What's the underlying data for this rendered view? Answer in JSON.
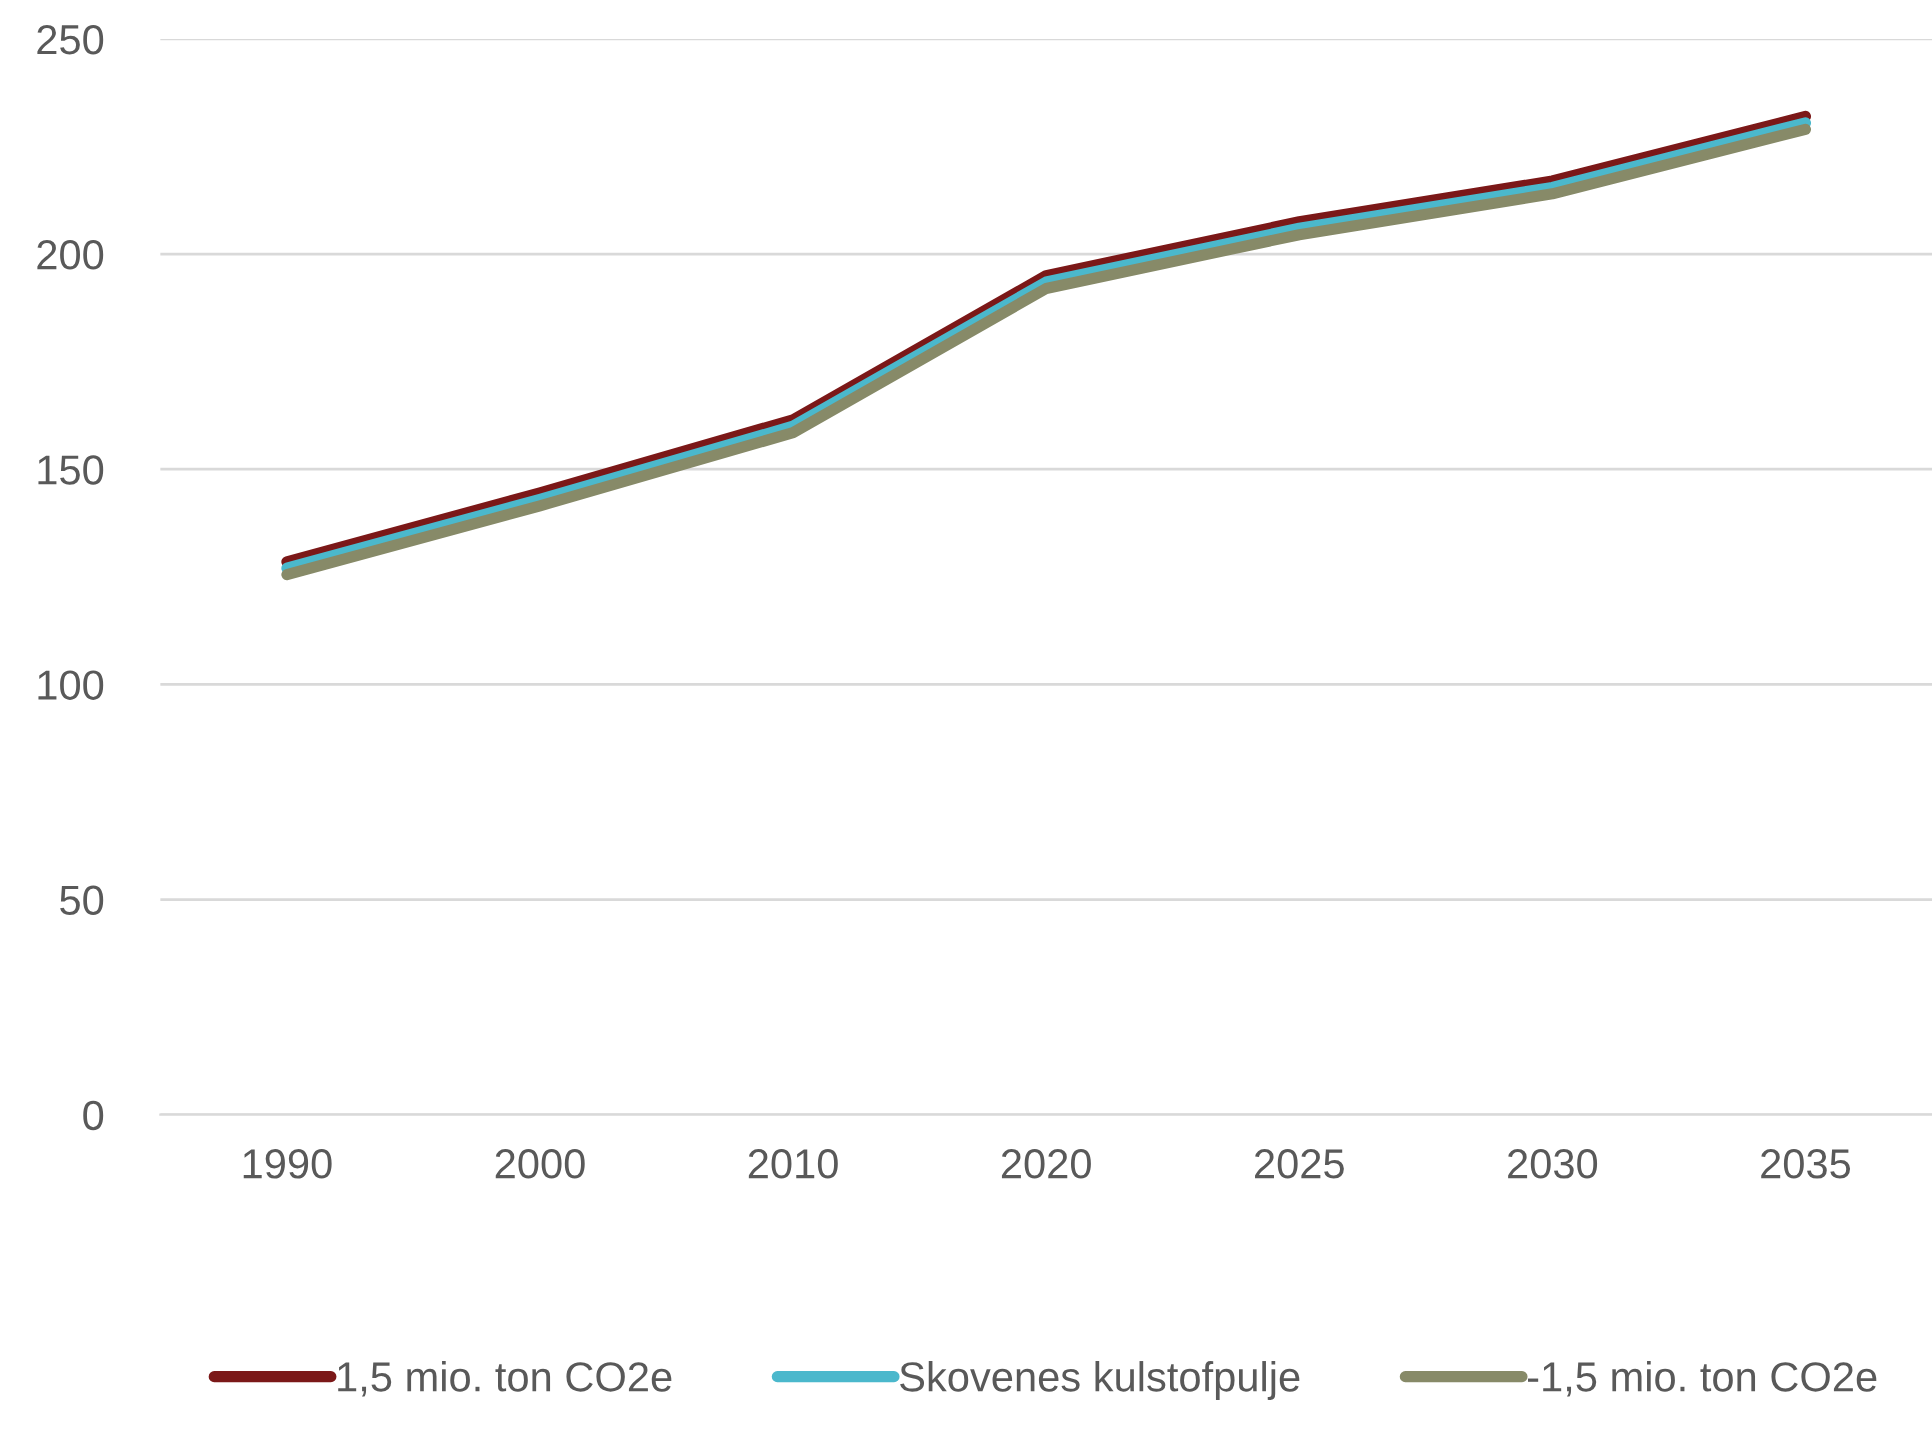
{
  "chart_data": {
    "type": "line",
    "categories": [
      "1990",
      "2000",
      "2010",
      "2020",
      "2025",
      "2030",
      "2035"
    ],
    "series": [
      {
        "name": "1,5 mio. ton CO2e",
        "color": "#7b1818",
        "values": [
          128.5,
          144.5,
          161.5,
          195,
          207.5,
          217,
          232
        ]
      },
      {
        "name": "Skovenes kulstofpulje",
        "color": "#4bb8cc",
        "values": [
          127,
          143,
          160,
          193.5,
          206,
          215.5,
          230.5
        ]
      },
      {
        "name": "-1,5 mio. ton CO2e",
        "color": "#878a68",
        "values": [
          125.5,
          141.5,
          158.5,
          192,
          204.5,
          214,
          229
        ]
      }
    ],
    "ylim": [
      0,
      250
    ],
    "yticks": [
      0,
      50,
      100,
      150,
      200,
      250
    ],
    "grid": "y",
    "legend": "bottom",
    "marker": "none",
    "line_style": "solid"
  }
}
